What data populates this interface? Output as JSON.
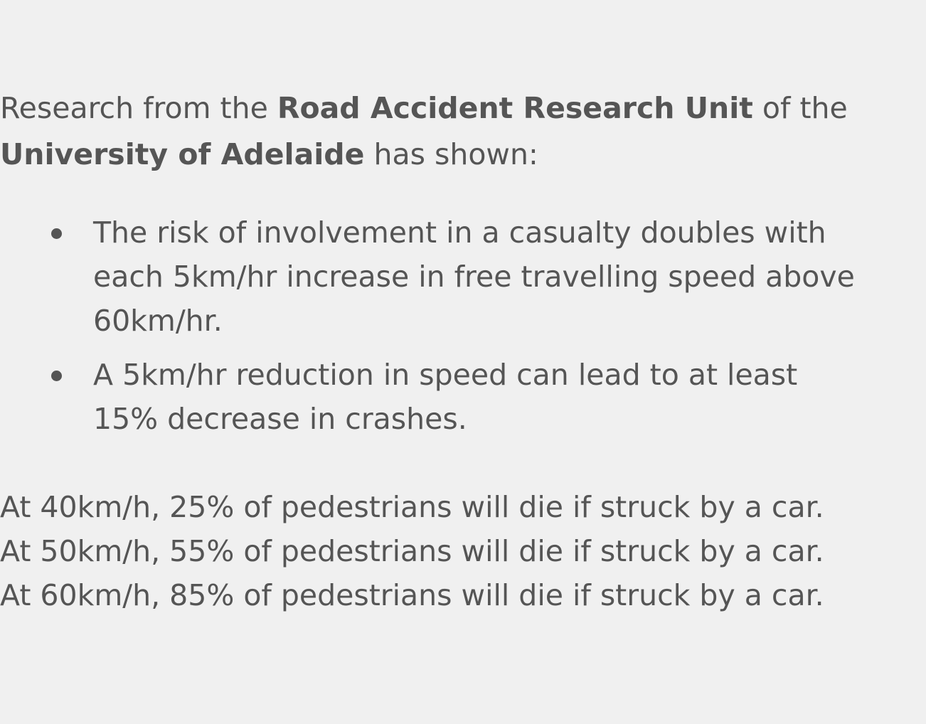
{
  "intro": {
    "part1": "Research from the ",
    "org_bold": "Road Accident Research Unit",
    "part2": " of the ",
    "university_bold": "University of Adelaide",
    "part3": " has shown:"
  },
  "facts": [
    "The risk of involvement in a casualty doubles with each 5km/hr increase in free travelling speed above 60km/hr.",
    "A 5km/hr reduction in speed can lead to at least 15% decrease in crashes."
  ],
  "stats": [
    "At 40km/h, 25% of pedestrians will die if struck by a car.",
    "At 50km/h, 55% of pedestrians will die if struck by a car.",
    "At 60km/h, 85% of pedestrians will die if struck by a car."
  ]
}
